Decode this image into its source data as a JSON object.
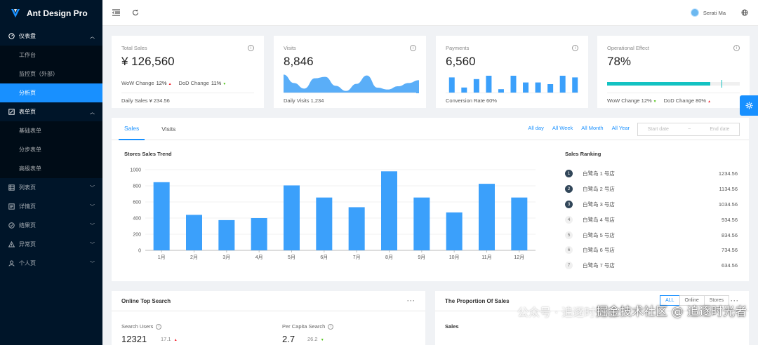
{
  "app": {
    "title": "Ant Design Pro"
  },
  "sidebar": {
    "groups": [
      {
        "label": "仪表盘",
        "icon": "dashboard-icon",
        "open": true,
        "items": [
          {
            "label": "工作台"
          },
          {
            "label": "监控页（外部）"
          },
          {
            "label": "分析页",
            "active": true
          }
        ]
      },
      {
        "label": "表单页",
        "icon": "form-icon",
        "open": true,
        "items": [
          {
            "label": "基础表单"
          },
          {
            "label": "分步表单"
          },
          {
            "label": "高级表单"
          }
        ]
      },
      {
        "label": "列表页",
        "icon": "table-icon"
      },
      {
        "label": "详情页",
        "icon": "profile-icon"
      },
      {
        "label": "结果页",
        "icon": "check-circle-icon"
      },
      {
        "label": "异常页",
        "icon": "warning-icon"
      },
      {
        "label": "个人页",
        "icon": "user-icon"
      }
    ]
  },
  "header": {
    "user_name": "Serati Ma"
  },
  "stats": {
    "total_sales": {
      "label": "Total Sales",
      "value": "¥ 126,560",
      "wow_label": "WoW Change",
      "wow_value": "12%",
      "dod_label": "DoD Change",
      "dod_value": "11%",
      "footer": "Daily Sales ¥ 234.56"
    },
    "visits": {
      "label": "Visits",
      "value": "8,846",
      "footer": "Daily Visits 1,234"
    },
    "payments": {
      "label": "Payments",
      "value": "6,560",
      "footer": "Conversion Rate 60%",
      "bars": [
        9,
        3,
        8,
        10,
        2,
        10,
        6,
        6,
        5,
        10,
        9
      ]
    },
    "operational": {
      "label": "Operational Effect",
      "value": "78%",
      "progress": 0.78,
      "target": 0.86,
      "wow_label": "WoW Change",
      "wow_value": "12%",
      "dod_label": "DoD Change",
      "dod_value": "80%"
    }
  },
  "sales_panel": {
    "tabs": [
      "Sales",
      "Visits"
    ],
    "active_tab": "Sales",
    "ranges": [
      "All day",
      "All Week",
      "All Month",
      "All Year"
    ],
    "start_placeholder": "Start date",
    "range_sep": "~",
    "end_placeholder": "End date",
    "chart_title": "Stores Sales Trend",
    "ranking_title": "Sales Ranking",
    "ranking": [
      {
        "rank": "1",
        "name": "白鹭岛 1 号店",
        "value": "1234.56"
      },
      {
        "rank": "2",
        "name": "白鹭岛 2 号店",
        "value": "1134.56"
      },
      {
        "rank": "3",
        "name": "白鹭岛 3 号店",
        "value": "1034.56"
      },
      {
        "rank": "4",
        "name": "白鹭岛 4 号店",
        "value": "934.56"
      },
      {
        "rank": "5",
        "name": "白鹭岛 5 号店",
        "value": "834.56"
      },
      {
        "rank": "6",
        "name": "白鹭岛 6 号店",
        "value": "734.56"
      },
      {
        "rank": "7",
        "name": "白鹭岛 7 号店",
        "value": "634.56"
      }
    ]
  },
  "chart_data": {
    "type": "bar",
    "title": "Stores Sales Trend",
    "categories": [
      "1月",
      "2月",
      "3月",
      "4月",
      "5月",
      "6月",
      "7月",
      "8月",
      "9月",
      "10月",
      "11月",
      "12月"
    ],
    "values": [
      845,
      440,
      375,
      400,
      805,
      655,
      535,
      980,
      655,
      470,
      825,
      655
    ],
    "yticks": [
      0,
      200,
      400,
      600,
      800,
      1000
    ],
    "ylim": [
      0,
      1000
    ],
    "color": "#3ba0fb"
  },
  "visits_area": [
    40,
    22,
    10,
    32,
    35,
    16,
    5,
    20,
    38,
    12,
    8,
    15,
    22,
    28
  ],
  "online_search": {
    "title": "Online Top Search",
    "search_users_label": "Search Users",
    "search_users_value": "12321",
    "search_users_sub": "17.1",
    "per_capita_label": "Per Capita Search",
    "per_capita_value": "2.7",
    "per_capita_sub": "26.2"
  },
  "proportion": {
    "title": "The Proportion Of Sales",
    "segments": [
      "ALL",
      "Online",
      "Stores"
    ],
    "active": "ALL",
    "label": "Sales"
  },
  "watermark": {
    "top": "公众号 · 追逐时光者",
    "bottom": "掘金技术社区 @ 追逐时光者"
  },
  "colors": {
    "primary": "#1890ff",
    "sider": "#001529",
    "progress": "#13c2c2"
  }
}
